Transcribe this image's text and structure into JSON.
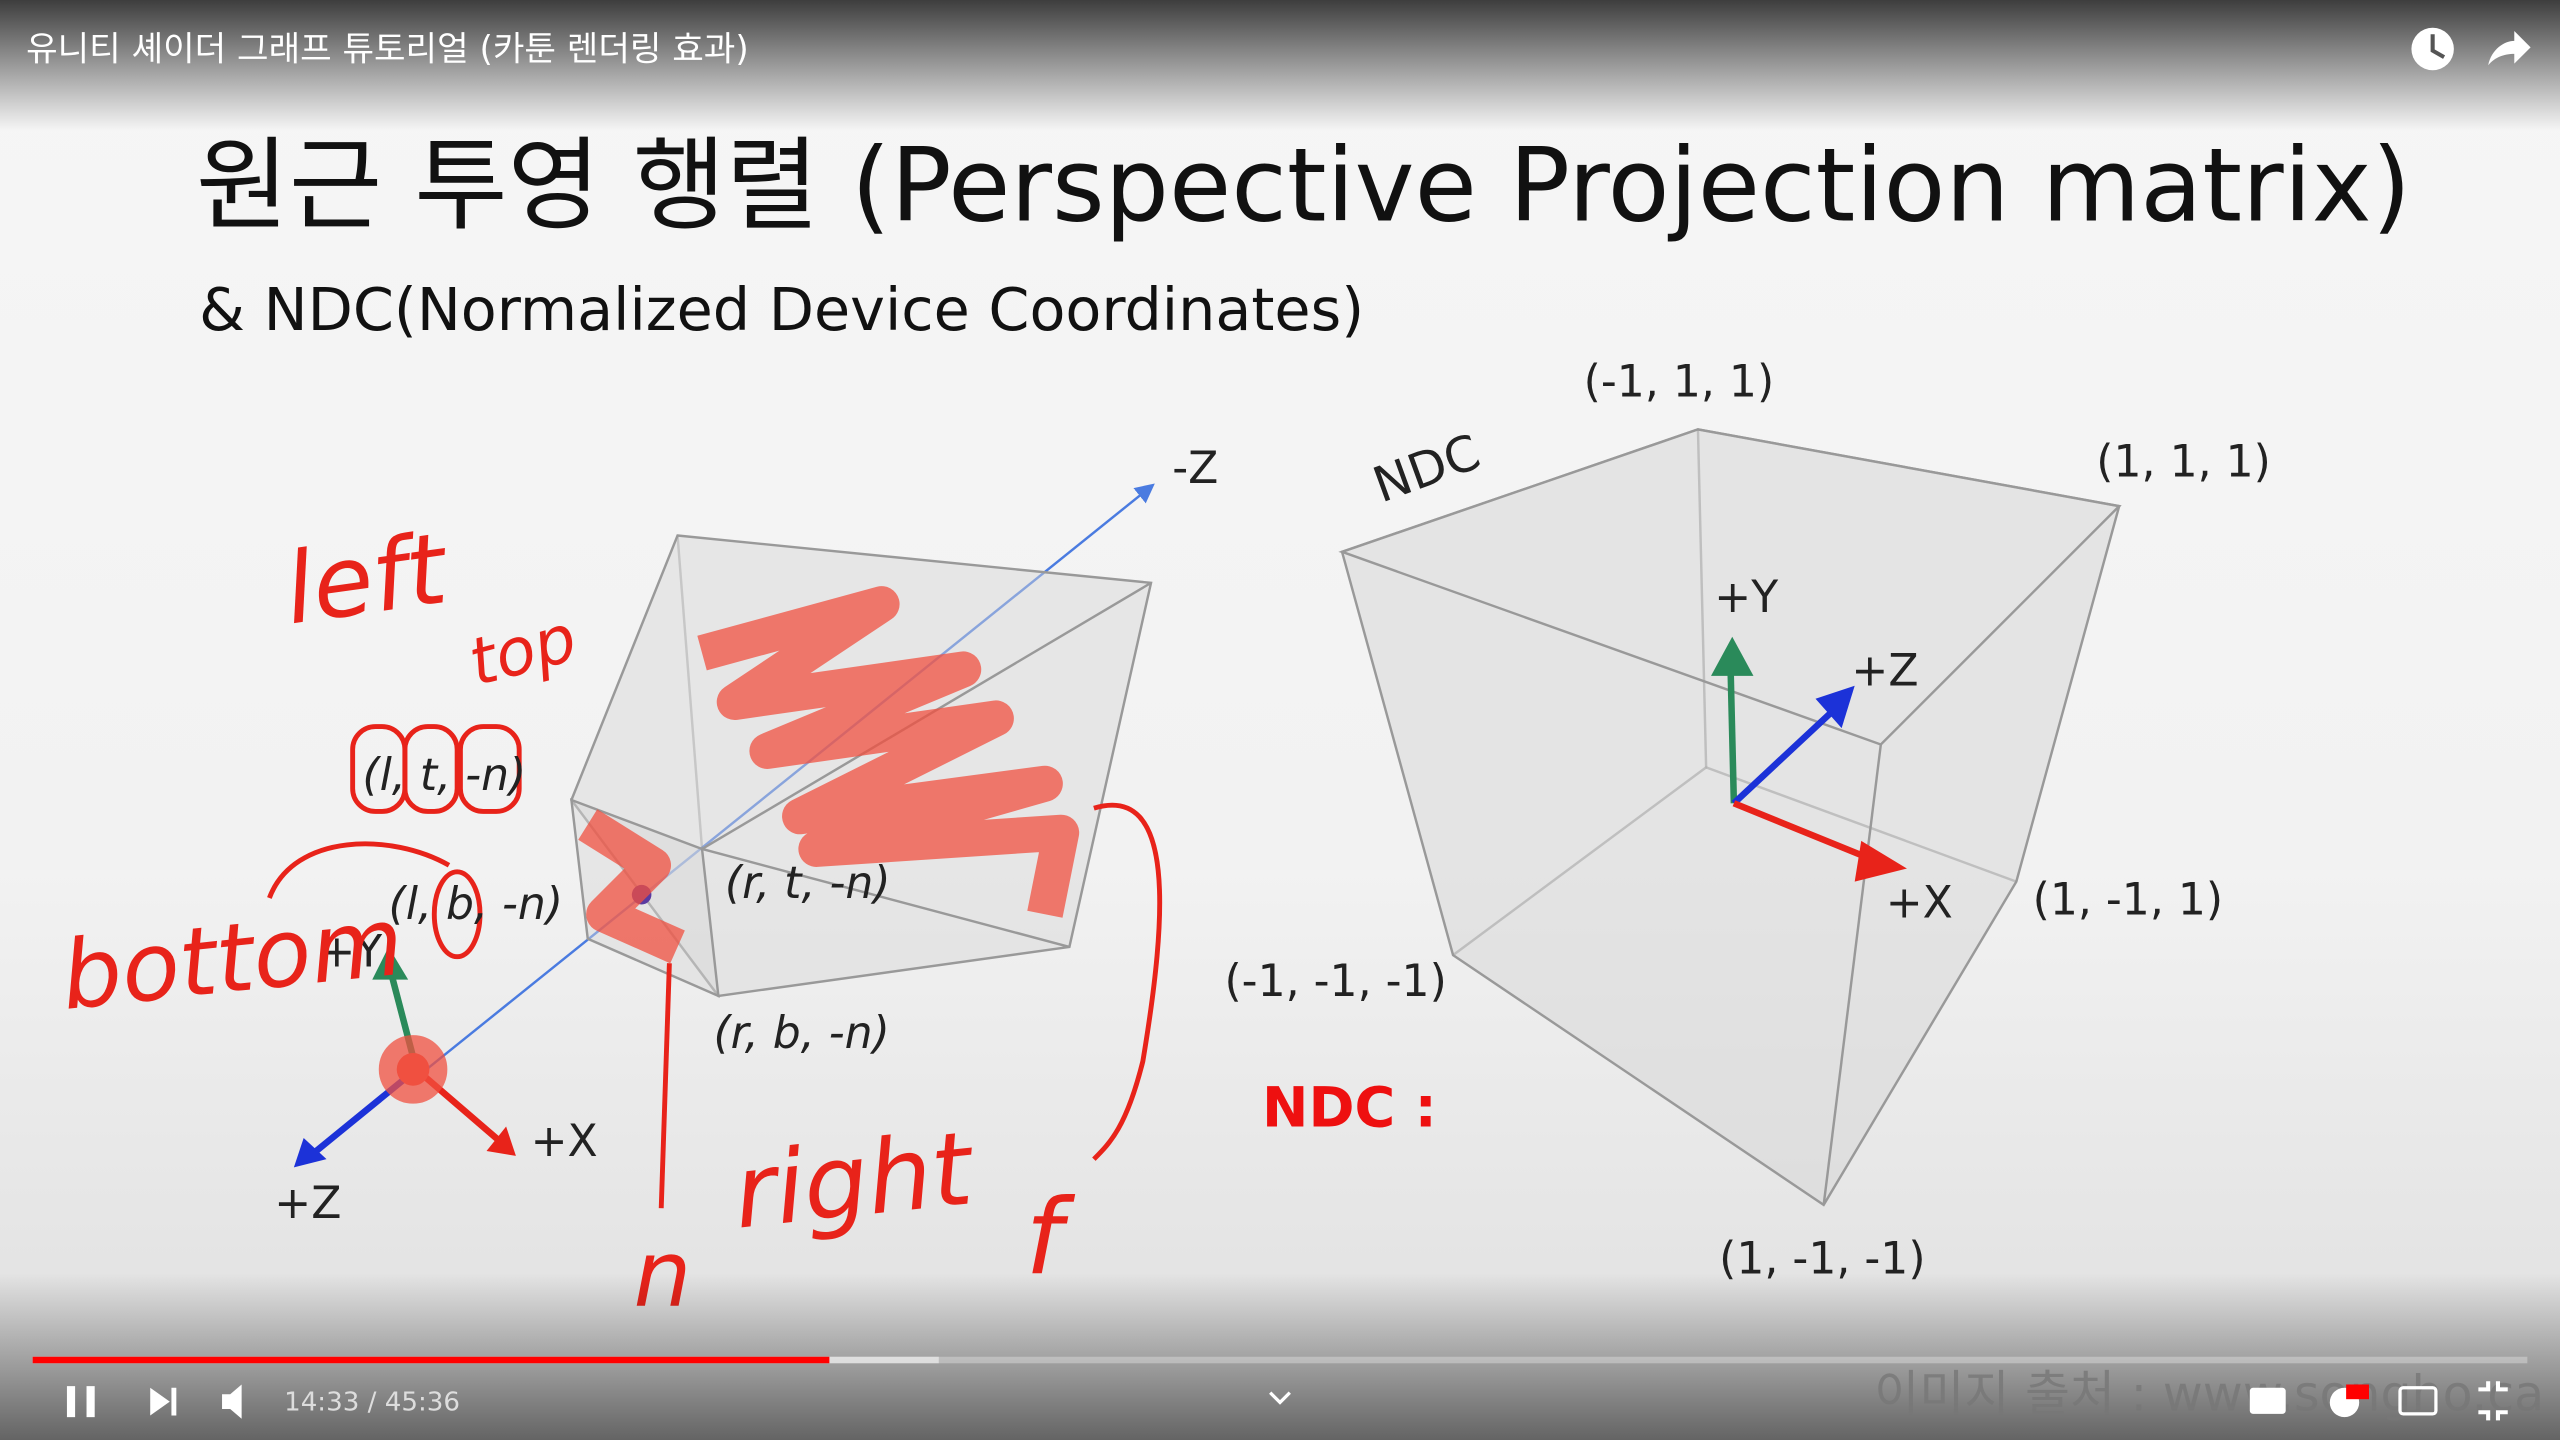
{
  "player": {
    "video_title": "유니티 셰이더 그래프 튜토리얼 (카툰 렌더링 효과)",
    "time": "14:33 / 45:36"
  },
  "slide": {
    "title": "원근 투영 행렬 (Perspective Projection matrix)",
    "subtitle": "& NDC(Normalized Device Coordinates)",
    "frustum_labels": [
      "-Z",
      "(l, t, -n)",
      "(l, b, -n)",
      "(r, t, -n)",
      "(r, b, -n)",
      "+Y",
      "+X",
      "+Z"
    ],
    "ndc_labels": [
      "NDC",
      "(-1, 1, 1)",
      "(1, 1, 1)",
      "+Y",
      "+Z",
      "+X",
      "(1, -1, 1)",
      "(-1, -1, -1)",
      "(1, -1, -1)"
    ],
    "annotation": "NDC :",
    "handwriting": [
      "left",
      "top",
      "bottom",
      "right",
      "n",
      "f"
    ],
    "source": "이미지 출처 : www.songho.ca"
  }
}
